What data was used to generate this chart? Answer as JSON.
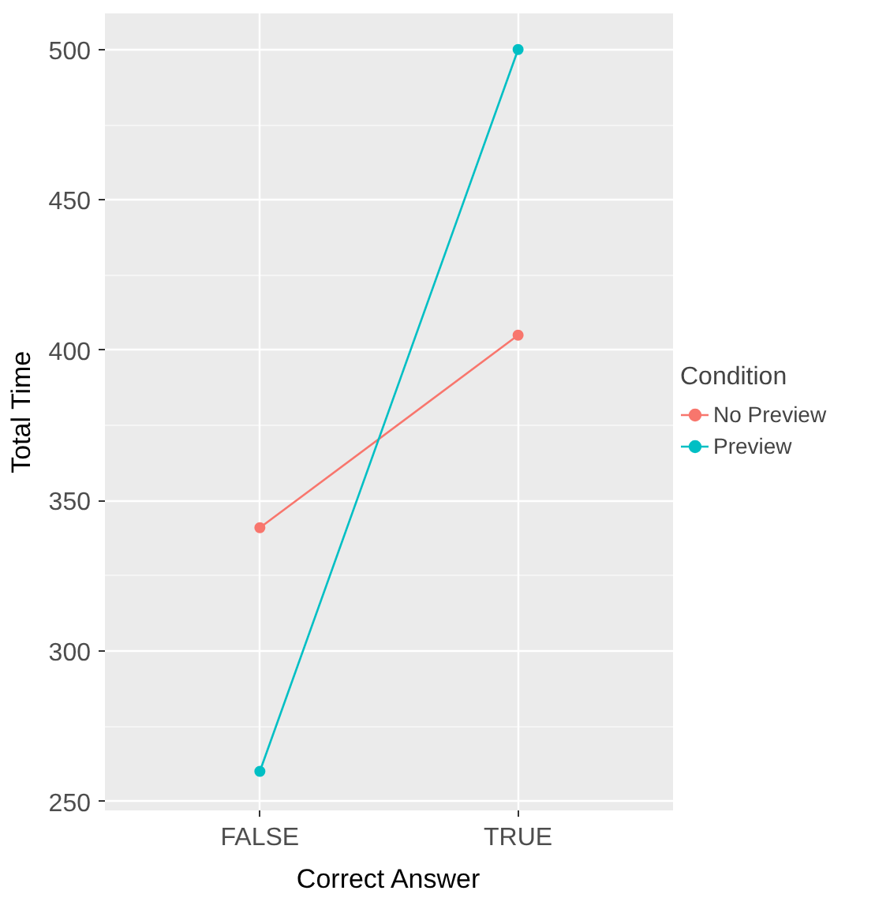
{
  "chart_data": {
    "type": "line",
    "xlabel": "Correct Answer",
    "ylabel": "Total Time",
    "legend_title": "Condition",
    "categories": [
      "FALSE",
      "TRUE"
    ],
    "series": [
      {
        "name": "No Preview",
        "color": "#f8766d",
        "values": [
          341,
          405
        ]
      },
      {
        "name": "Preview",
        "color": "#00bfc4",
        "values": [
          260,
          500
        ]
      }
    ],
    "ylim": [
      247,
      512
    ],
    "yticks": [
      250,
      300,
      350,
      400,
      450,
      500
    ],
    "grid": true,
    "legend": "right",
    "marker": "circle",
    "line_style": "solid"
  }
}
